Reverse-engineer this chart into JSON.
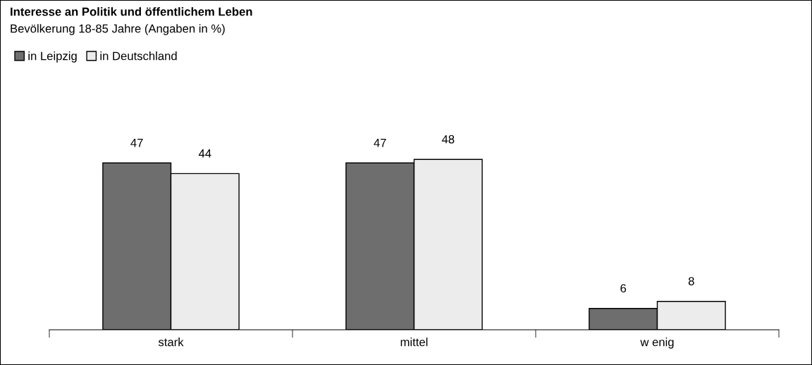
{
  "chart_data": {
    "type": "bar",
    "title": "Interesse an Politik und öffentlichem Leben",
    "subtitle": "Bevölkerung 18-85 Jahre (Angaben in %)",
    "categories": [
      "stark",
      "mittel",
      "w enig"
    ],
    "series": [
      {
        "name": "in Leipzig",
        "color": "#6e6e6e",
        "values": [
          47,
          47,
          6
        ]
      },
      {
        "name": "in Deutschland",
        "color": "#ececec",
        "values": [
          44,
          48,
          8
        ]
      }
    ],
    "data_labels": true,
    "legend": "top left",
    "grid": false
  }
}
